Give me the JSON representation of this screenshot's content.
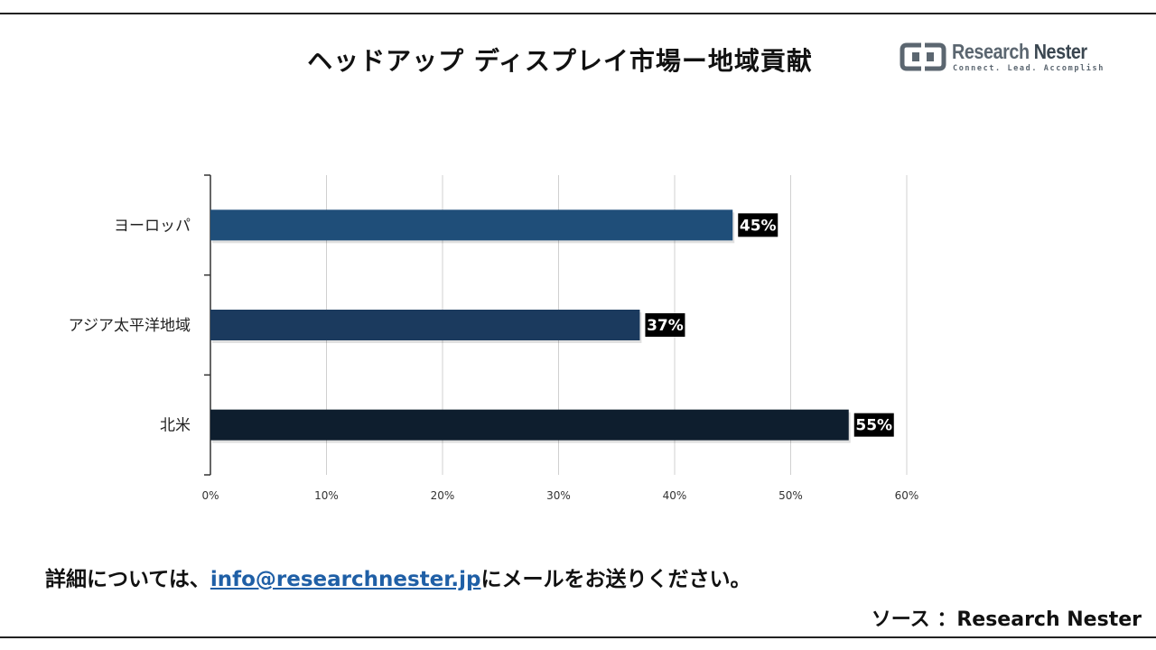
{
  "title": "ヘッドアップ ディスプレイ市場ー地域貢献",
  "logo": {
    "icon": "research-nester-logo-mark",
    "name_part1": "Research ",
    "name_part2": "Nester",
    "tagline": "Connect. Lead. Accomplish"
  },
  "chart_data": {
    "type": "bar",
    "orientation": "horizontal",
    "title": "ヘッドアップ ディスプレイ市場ー地域貢献",
    "categories": [
      "ヨーロッパ",
      "アジア太平洋地域",
      "北米"
    ],
    "values": [
      45,
      37,
      55
    ],
    "data_labels": [
      "45%",
      "37%",
      "55%"
    ],
    "bar_colors": [
      "#1f4e79",
      "#1b3a5e",
      "#0e1e2e"
    ],
    "xlim": [
      0,
      60
    ],
    "xticks": [
      "0%",
      "10%",
      "20%",
      "30%",
      "40%",
      "50%",
      "60%"
    ],
    "xlabel": "",
    "ylabel": "",
    "grid": true,
    "legend": "none"
  },
  "footer": {
    "prefix": "詳細については、",
    "email": "info@researchnester.jp",
    "suffix": "にメールをお送りください。"
  },
  "source": "ソース ：Research Nester"
}
